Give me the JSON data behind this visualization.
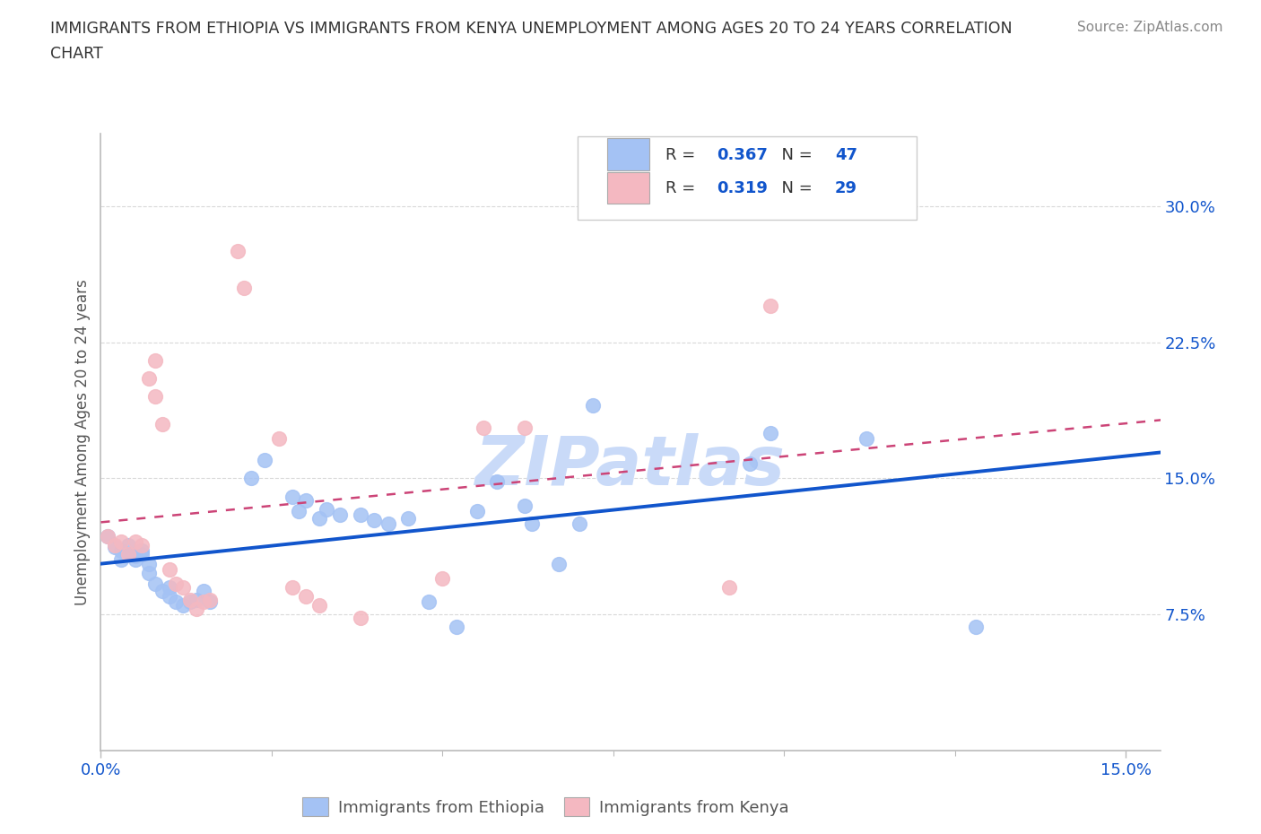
{
  "title_line1": "IMMIGRANTS FROM ETHIOPIA VS IMMIGRANTS FROM KENYA UNEMPLOYMENT AMONG AGES 20 TO 24 YEARS CORRELATION",
  "title_line2": "CHART",
  "source": "Source: ZipAtlas.com",
  "ylabel": "Unemployment Among Ages 20 to 24 years",
  "xlim": [
    0.0,
    0.155
  ],
  "ylim": [
    0.0,
    0.34
  ],
  "yticks": [
    0.075,
    0.15,
    0.225,
    0.3
  ],
  "ytick_labels": [
    "7.5%",
    "15.0%",
    "22.5%",
    "30.0%"
  ],
  "xticks": [
    0.0,
    0.15
  ],
  "xtick_labels": [
    "0.0%",
    "15.0%"
  ],
  "R_ethiopia": 0.367,
  "N_ethiopia": 47,
  "R_kenya": 0.319,
  "N_kenya": 29,
  "color_ethiopia": "#a4c2f4",
  "color_kenya": "#f4b8c1",
  "line_color_ethiopia": "#1155cc",
  "line_color_kenya": "#cc4477",
  "line_color_text": "#1155cc",
  "watermark_text": "ZIPatlas",
  "watermark_color": "#c9daf8",
  "ethiopia_points": [
    [
      0.001,
      0.118
    ],
    [
      0.002,
      0.112
    ],
    [
      0.003,
      0.11
    ],
    [
      0.003,
      0.105
    ],
    [
      0.004,
      0.108
    ],
    [
      0.004,
      0.113
    ],
    [
      0.005,
      0.107
    ],
    [
      0.005,
      0.105
    ],
    [
      0.006,
      0.11
    ],
    [
      0.006,
      0.108
    ],
    [
      0.007,
      0.103
    ],
    [
      0.007,
      0.098
    ],
    [
      0.008,
      0.092
    ],
    [
      0.009,
      0.088
    ],
    [
      0.01,
      0.09
    ],
    [
      0.01,
      0.085
    ],
    [
      0.011,
      0.082
    ],
    [
      0.012,
      0.08
    ],
    [
      0.013,
      0.082
    ],
    [
      0.014,
      0.083
    ],
    [
      0.015,
      0.088
    ],
    [
      0.016,
      0.082
    ],
    [
      0.022,
      0.15
    ],
    [
      0.024,
      0.16
    ],
    [
      0.028,
      0.14
    ],
    [
      0.029,
      0.132
    ],
    [
      0.03,
      0.138
    ],
    [
      0.032,
      0.128
    ],
    [
      0.033,
      0.133
    ],
    [
      0.035,
      0.13
    ],
    [
      0.038,
      0.13
    ],
    [
      0.04,
      0.127
    ],
    [
      0.042,
      0.125
    ],
    [
      0.045,
      0.128
    ],
    [
      0.048,
      0.082
    ],
    [
      0.052,
      0.068
    ],
    [
      0.055,
      0.132
    ],
    [
      0.058,
      0.148
    ],
    [
      0.062,
      0.135
    ],
    [
      0.063,
      0.125
    ],
    [
      0.067,
      0.103
    ],
    [
      0.07,
      0.125
    ],
    [
      0.072,
      0.19
    ],
    [
      0.095,
      0.158
    ],
    [
      0.098,
      0.175
    ],
    [
      0.112,
      0.172
    ],
    [
      0.128,
      0.068
    ]
  ],
  "kenya_points": [
    [
      0.001,
      0.118
    ],
    [
      0.002,
      0.113
    ],
    [
      0.003,
      0.115
    ],
    [
      0.004,
      0.108
    ],
    [
      0.005,
      0.115
    ],
    [
      0.006,
      0.113
    ],
    [
      0.007,
      0.205
    ],
    [
      0.008,
      0.215
    ],
    [
      0.008,
      0.195
    ],
    [
      0.009,
      0.18
    ],
    [
      0.01,
      0.1
    ],
    [
      0.011,
      0.092
    ],
    [
      0.012,
      0.09
    ],
    [
      0.013,
      0.083
    ],
    [
      0.014,
      0.078
    ],
    [
      0.015,
      0.082
    ],
    [
      0.016,
      0.083
    ],
    [
      0.02,
      0.275
    ],
    [
      0.021,
      0.255
    ],
    [
      0.026,
      0.172
    ],
    [
      0.028,
      0.09
    ],
    [
      0.03,
      0.085
    ],
    [
      0.032,
      0.08
    ],
    [
      0.038,
      0.073
    ],
    [
      0.05,
      0.095
    ],
    [
      0.056,
      0.178
    ],
    [
      0.062,
      0.178
    ],
    [
      0.092,
      0.09
    ],
    [
      0.098,
      0.245
    ]
  ],
  "background_color": "#ffffff",
  "grid_color": "#d0d0d0"
}
